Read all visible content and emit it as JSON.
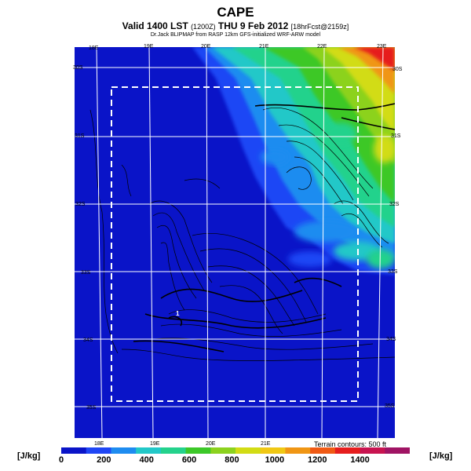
{
  "header": {
    "title": "CAPE",
    "subtitle_main": "Valid 1400 LST",
    "subtitle_code": "(1200Z)",
    "subtitle_date": "THU 9 Feb 2012",
    "subtitle_meta": "[18hrFcst@2159z]",
    "credit": "Dr.Jack BLIPMAP from RASP 12km GFS-initialized WRF-ARW model"
  },
  "map": {
    "top_lon_labels": [
      "18E",
      "19E",
      "20E",
      "21E",
      "22E",
      "23E"
    ],
    "bottom_lon_labels": [
      "18E",
      "19E",
      "20E",
      "21E"
    ],
    "left_lat_labels": [
      "30S",
      "31S",
      "32S",
      "33S",
      "34S",
      "35S"
    ],
    "right_lat_labels": [
      "30S",
      "31S",
      "32S",
      "33S",
      "34S",
      "35S"
    ],
    "marker_label": "1",
    "terrain_note": "Terrain contours: 500 ft"
  },
  "legend": {
    "unit_left": "[J/kg]",
    "unit_right": "[J/kg]",
    "ticks": [
      "0",
      "200",
      "400",
      "600",
      "800",
      "1000",
      "1200",
      "1400"
    ],
    "colors": [
      "#0a14c8",
      "#1f46f5",
      "#1e8cf0",
      "#22c8c8",
      "#24d28c",
      "#3cc828",
      "#8cd21e",
      "#d2dc14",
      "#f0c814",
      "#f09614",
      "#f05a14",
      "#e61e1e",
      "#c81450",
      "#a01464"
    ]
  }
}
